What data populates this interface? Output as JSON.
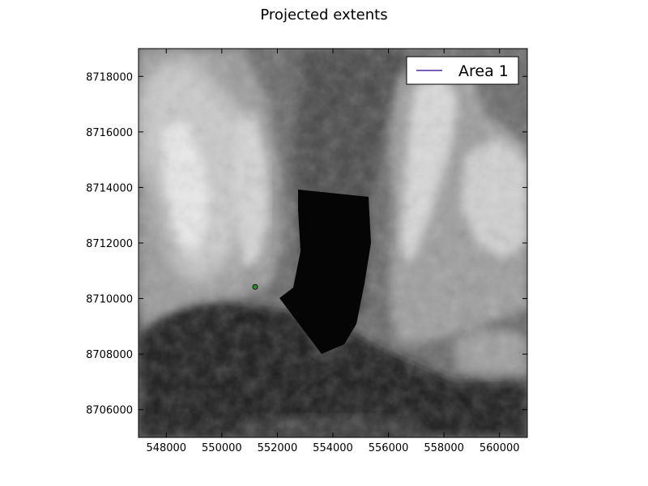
{
  "figure": {
    "title": "Projected extents"
  },
  "chart_data": {
    "type": "scatter",
    "title": "Projected extents",
    "xlim": [
      547000,
      561000
    ],
    "ylim": [
      8705000,
      8719000
    ],
    "x_ticks": [
      548000,
      550000,
      552000,
      554000,
      556000,
      558000,
      560000
    ],
    "y_ticks": [
      8706000,
      8708000,
      8710000,
      8712000,
      8714000,
      8716000,
      8718000
    ],
    "x_tick_labels": [
      "548000",
      "550000",
      "552000",
      "554000",
      "556000",
      "558000",
      "560000"
    ],
    "y_tick_labels": [
      "8706000",
      "8708000",
      "8710000",
      "8712000",
      "8714000",
      "8716000",
      "8718000"
    ],
    "grid": false,
    "legend": {
      "position": "top-right",
      "entries": [
        "Area 1"
      ]
    },
    "series": [
      {
        "name": "Area 1",
        "kind": "line",
        "color": "#4b2a9e",
        "x": [],
        "y": []
      }
    ],
    "points": [
      {
        "x": 551200,
        "y": 8710420,
        "color": "#2f8f2f"
      }
    ],
    "background": "grayscale elevation raster"
  }
}
